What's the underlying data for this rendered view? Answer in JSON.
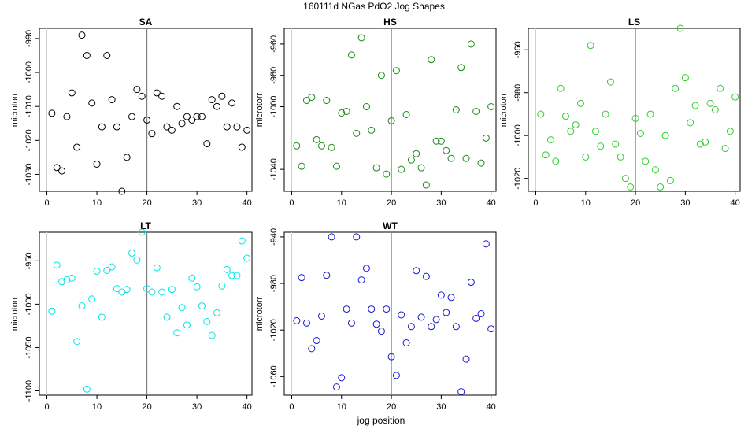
{
  "figure": {
    "title": "160111d   NGas PdO2 Jog Shapes",
    "xlabel": "jog position"
  },
  "chart_data": [
    {
      "type": "scatter",
      "title": "SA",
      "color": "#000000",
      "ylabel": "microtorr",
      "xlim": [
        -1.5,
        41
      ],
      "ylim": [
        -1035,
        -987
      ],
      "xticks": [
        0,
        10,
        20,
        30,
        40
      ],
      "yticks": [
        -1030,
        -1020,
        -1010,
        -1000,
        -990
      ],
      "vline": 20,
      "x": [
        1,
        2,
        3,
        4,
        5,
        6,
        7,
        8,
        9,
        10,
        11,
        12,
        13,
        14,
        15,
        16,
        17,
        18,
        19,
        20,
        21,
        22,
        23,
        24,
        25,
        26,
        27,
        28,
        29,
        30,
        31,
        32,
        33,
        34,
        35,
        36,
        37,
        38,
        39,
        40
      ],
      "y": [
        -1012,
        -1028,
        -1029,
        -1013,
        -1006,
        -1022,
        -989,
        -995,
        -1009,
        -1027,
        -1016,
        -995,
        -1008,
        -1016,
        -1035,
        -1025,
        -1013,
        -1005,
        -1007,
        -1014,
        -1018,
        -1006,
        -1007,
        -1016,
        -1017,
        -1010,
        -1015,
        -1013,
        -1014,
        -1013,
        -1013,
        -1021,
        -1008,
        -1010,
        -1007,
        -1016,
        -1009,
        -1016,
        -1022,
        -1017
      ]
    },
    {
      "type": "scatter",
      "title": "HS",
      "color": "#1a8a1a",
      "ylabel": "microtorr",
      "xlim": [
        -1.5,
        41
      ],
      "ylim": [
        -1054,
        -950
      ],
      "xticks": [
        0,
        10,
        20,
        30,
        40
      ],
      "yticks": [
        -1040,
        -1000,
        -980,
        -960
      ],
      "vline": 20,
      "x": [
        1,
        2,
        3,
        4,
        5,
        6,
        7,
        8,
        9,
        10,
        11,
        12,
        13,
        14,
        15,
        16,
        17,
        18,
        19,
        20,
        21,
        22,
        23,
        24,
        25,
        26,
        27,
        28,
        29,
        30,
        31,
        32,
        33,
        34,
        35,
        36,
        37,
        38,
        39,
        40
      ],
      "y": [
        -1025,
        -1038,
        -996,
        -994,
        -1021,
        -1025,
        -996,
        -1026,
        -1038,
        -1004,
        -1003,
        -967,
        -1017,
        -956,
        -1000,
        -1015,
        -1039,
        -980,
        -1043,
        -1009,
        -977,
        -1040,
        -1005,
        -1034,
        -1030,
        -1039,
        -1050,
        -970,
        -1022,
        -1022,
        -1028,
        -1033,
        -1002,
        -975,
        -1033,
        -960,
        -1003,
        -1036,
        -1020,
        -1000
      ]
    },
    {
      "type": "scatter",
      "title": "LS",
      "color": "#33cc33",
      "ylabel": "microtorr",
      "xlim": [
        -1.5,
        41
      ],
      "ylim": [
        -1026,
        -950
      ],
      "xticks": [
        0,
        10,
        20,
        30,
        40
      ],
      "yticks": [
        -1020,
        -1000,
        -980,
        -960
      ],
      "vline": 20,
      "x": [
        1,
        2,
        3,
        4,
        5,
        6,
        7,
        8,
        9,
        10,
        11,
        12,
        13,
        14,
        15,
        16,
        17,
        18,
        19,
        20,
        21,
        22,
        23,
        24,
        25,
        26,
        27,
        28,
        29,
        30,
        31,
        32,
        33,
        34,
        35,
        36,
        37,
        38,
        39,
        40
      ],
      "y": [
        -990,
        -1009,
        -1002,
        -1012,
        -978,
        -991,
        -998,
        -995,
        -985,
        -1010,
        -958,
        -998,
        -1005,
        -990,
        -975,
        -1004,
        -1010,
        -1020,
        -1024,
        -992,
        -999,
        -1012,
        -990,
        -1016,
        -1024,
        -1000,
        -1021,
        -978,
        -950,
        -973,
        -994,
        -986,
        -1004,
        -1003,
        -985,
        -988,
        -978,
        -1006,
        -998,
        -982
      ]
    },
    {
      "type": "scatter",
      "title": "LT",
      "color": "#00e5e5",
      "ylabel": "microtorr",
      "xlim": [
        -1.5,
        41
      ],
      "ylim": [
        -1105,
        -917
      ],
      "xticks": [
        0,
        10,
        20,
        30,
        40
      ],
      "yticks": [
        -1100,
        -1050,
        -1000,
        -950
      ],
      "vline": 20,
      "x": [
        1,
        2,
        3,
        4,
        5,
        6,
        7,
        8,
        9,
        10,
        11,
        12,
        13,
        14,
        15,
        16,
        17,
        18,
        19,
        20,
        21,
        22,
        23,
        24,
        25,
        26,
        27,
        28,
        29,
        30,
        31,
        32,
        33,
        34,
        35,
        36,
        37,
        38,
        39,
        40
      ],
      "y": [
        -1008,
        -955,
        -974,
        -972,
        -970,
        -1043,
        -1002,
        -1098,
        -994,
        -962,
        -1015,
        -961,
        -957,
        -982,
        -986,
        -983,
        -941,
        -949,
        -917,
        -982,
        -986,
        -958,
        -986,
        -1015,
        -983,
        -1033,
        -1004,
        -1024,
        -970,
        -980,
        -1002,
        -1020,
        -1036,
        -1010,
        -979,
        -960,
        -967,
        -967,
        -927,
        -947
      ]
    },
    {
      "type": "scatter",
      "title": "WT",
      "color": "#1a1acc",
      "ylabel": "microtorr",
      "xlim": [
        -1.5,
        41
      ],
      "ylim": [
        -1076,
        -936
      ],
      "xticks": [
        0,
        10,
        20,
        30,
        40
      ],
      "yticks": [
        -1060,
        -1020,
        -980,
        -940
      ],
      "vline": 20,
      "x": [
        1,
        2,
        3,
        4,
        5,
        6,
        7,
        8,
        9,
        10,
        11,
        12,
        13,
        14,
        15,
        16,
        17,
        18,
        19,
        20,
        21,
        22,
        23,
        24,
        25,
        26,
        27,
        28,
        29,
        30,
        31,
        32,
        33,
        34,
        35,
        36,
        37,
        38,
        39,
        40
      ],
      "y": [
        -1012,
        -975,
        -1014,
        -1036,
        -1029,
        -1008,
        -973,
        -940,
        -1069,
        -1061,
        -1002,
        -1014,
        -940,
        -977,
        -967,
        -1002,
        -1015,
        -1021,
        -1002,
        -1043,
        -1059,
        -1007,
        -1031,
        -1017,
        -969,
        -1009,
        -974,
        -1017,
        -1011,
        -990,
        -1005,
        -992,
        -1017,
        -1073,
        -1045,
        -979,
        -1010,
        -1006,
        -946,
        -1019
      ]
    }
  ]
}
